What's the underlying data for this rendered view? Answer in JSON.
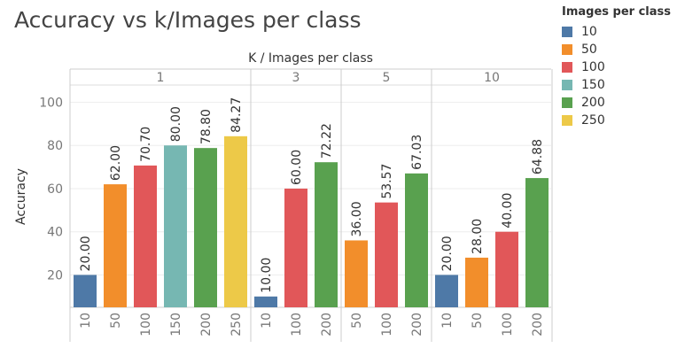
{
  "title": "Accuracy vs k/Images per class",
  "legend": {
    "title": "Images per class",
    "items": [
      {
        "label": "10",
        "color": "#4e79a7"
      },
      {
        "label": "50",
        "color": "#f28e2b"
      },
      {
        "label": "100",
        "color": "#e15759"
      },
      {
        "label": "150",
        "color": "#76b7b2"
      },
      {
        "label": "200",
        "color": "#59a14f"
      },
      {
        "label": "250",
        "color": "#edc948"
      }
    ]
  },
  "chart_data": {
    "type": "bar",
    "title": "Accuracy vs k/Images per class",
    "xlabel": "K  /  Images per class",
    "ylabel": "Accuracy",
    "ylim": [
      5,
      108
    ],
    "yticks": [
      20,
      40,
      60,
      80,
      100
    ],
    "grid": true,
    "legend_position": "top-right",
    "panels": [
      {
        "k": "1",
        "categories": [
          "10",
          "50",
          "100",
          "150",
          "200",
          "250"
        ],
        "values": [
          20.0,
          62.0,
          70.7,
          80.0,
          78.8,
          84.27
        ],
        "labels": [
          "20.00",
          "62.00",
          "70.70",
          "80.00",
          "78.80",
          "84.27"
        ]
      },
      {
        "k": "3",
        "categories": [
          "10",
          "100",
          "200"
        ],
        "values": [
          10.0,
          60.0,
          72.22
        ],
        "labels": [
          "10.00",
          "60.00",
          "72.22"
        ]
      },
      {
        "k": "5",
        "categories": [
          "50",
          "100",
          "200"
        ],
        "values": [
          36.0,
          53.57,
          67.03
        ],
        "labels": [
          "36.00",
          "53.57",
          "67.03"
        ]
      },
      {
        "k": "10",
        "categories": [
          "10",
          "50",
          "100",
          "200"
        ],
        "values": [
          20.0,
          28.0,
          40.0,
          64.88
        ],
        "labels": [
          "20.00",
          "28.00",
          "40.00",
          "64.88"
        ]
      }
    ]
  }
}
